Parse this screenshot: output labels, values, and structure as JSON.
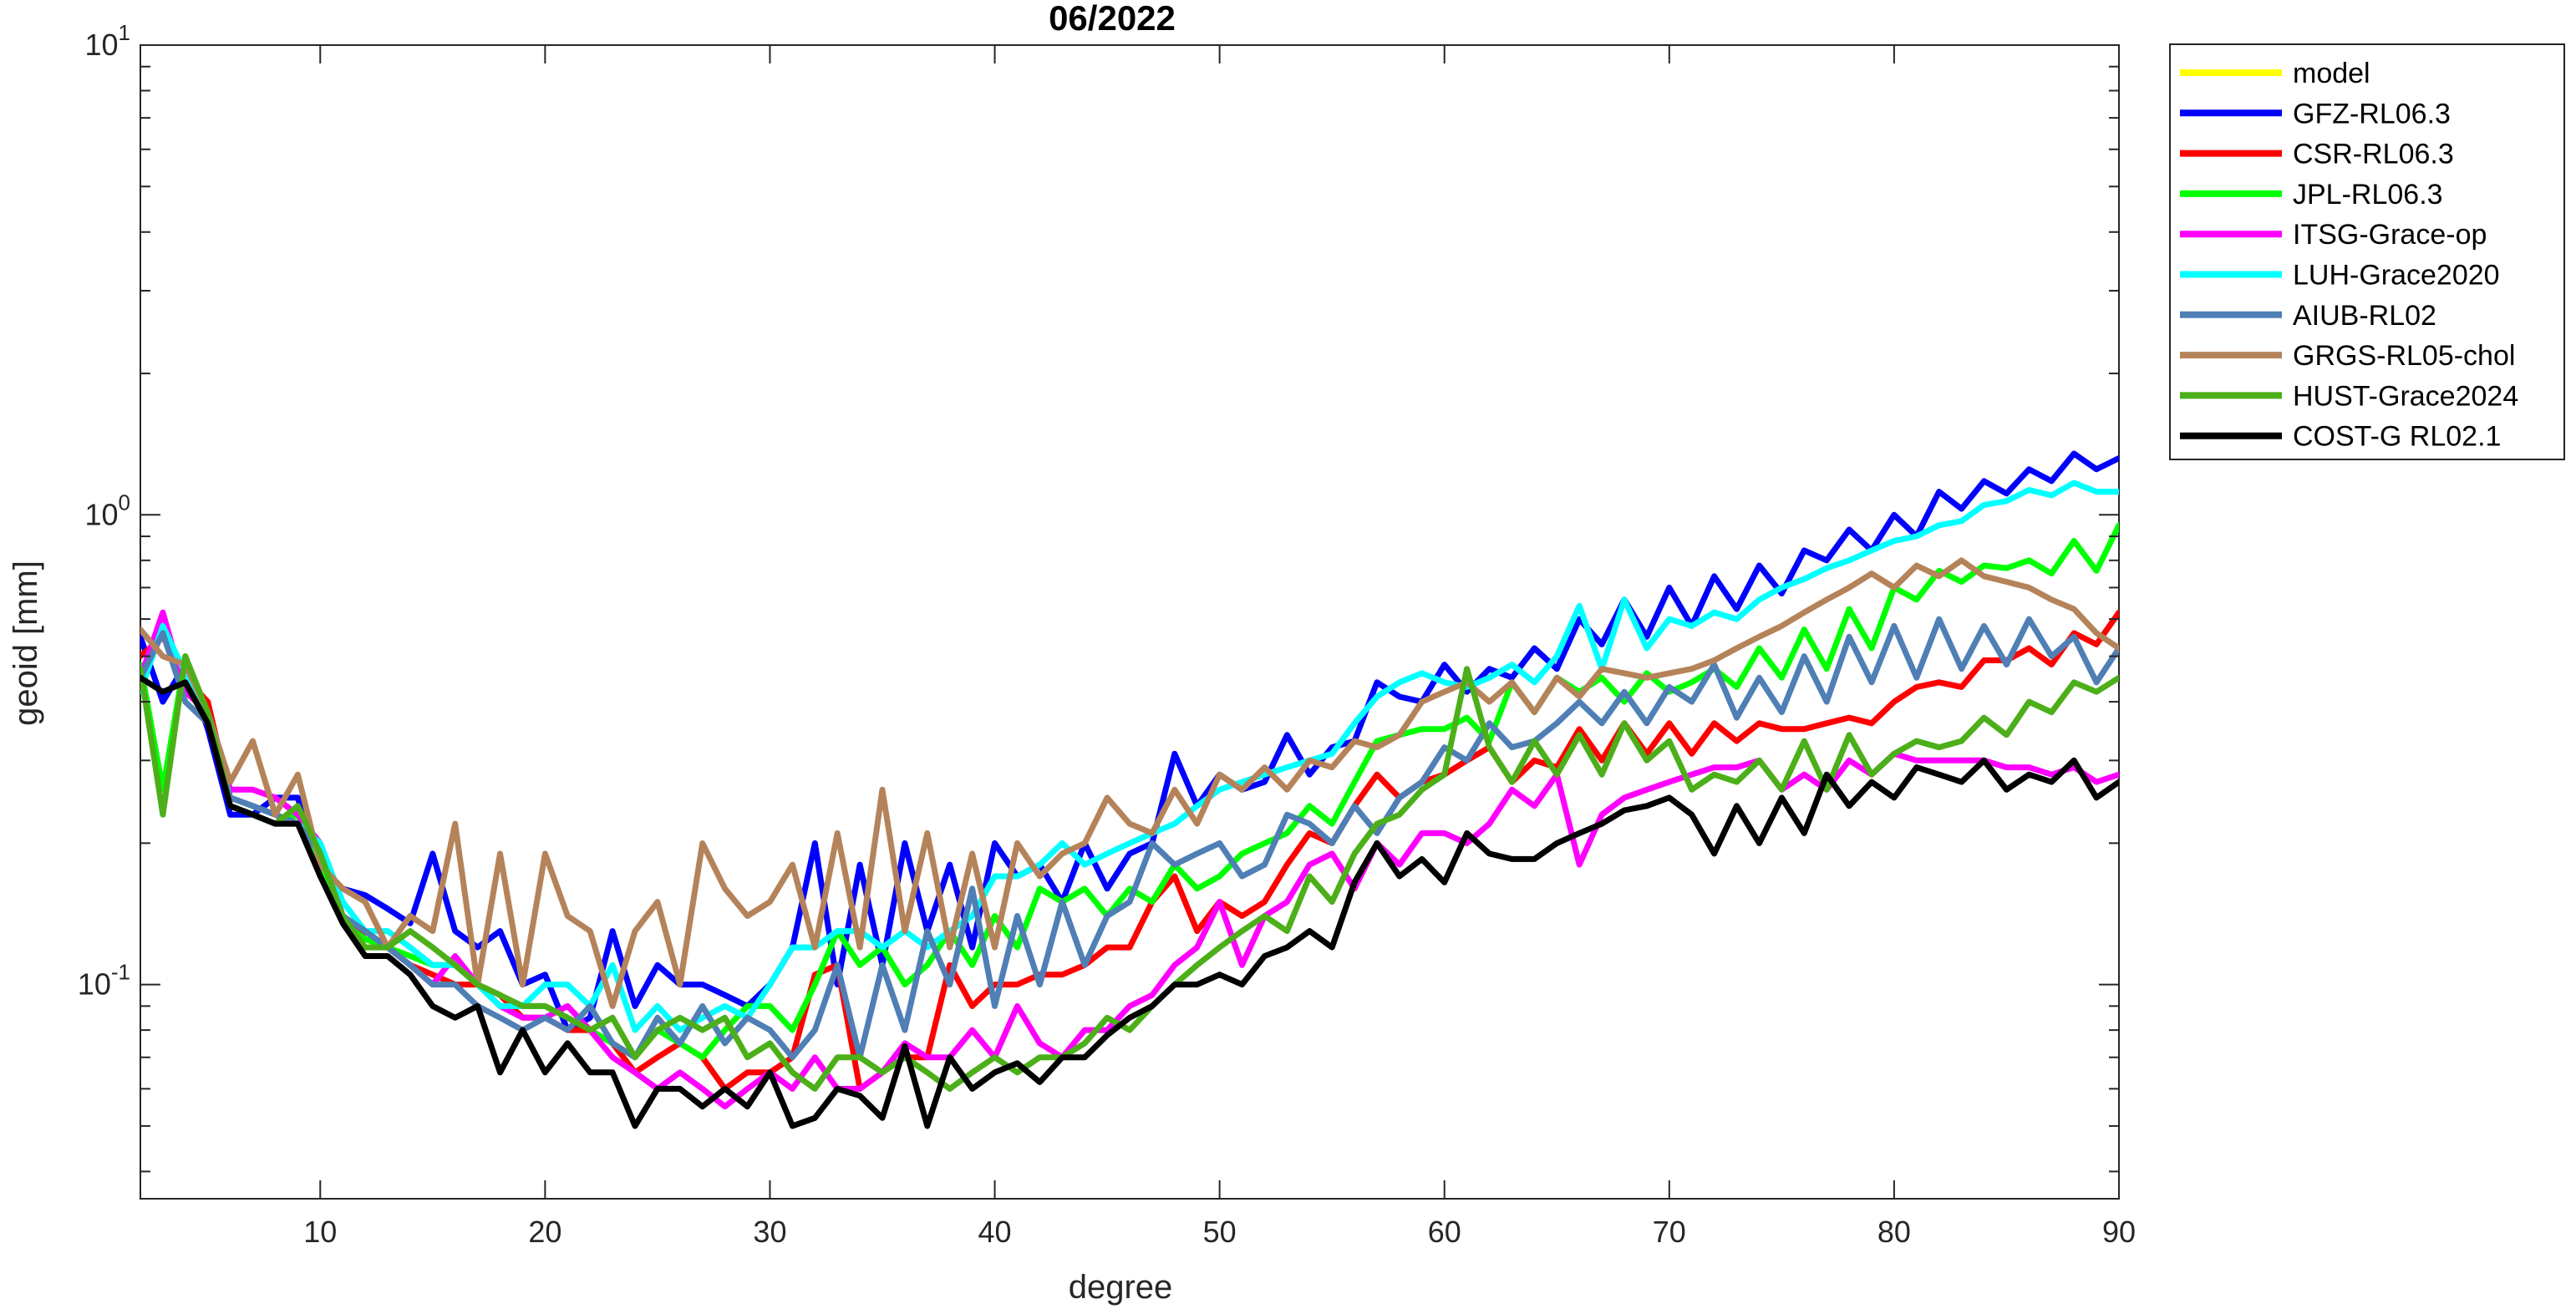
{
  "chart_data": {
    "type": "line",
    "title": "06/2022",
    "xlabel": "degree",
    "ylabel": "geoid [mm]",
    "xlim": [
      2,
      90
    ],
    "ylim": [
      0.035,
      10
    ],
    "yscale": "log",
    "xticks": [
      10,
      20,
      30,
      40,
      50,
      60,
      70,
      80,
      90
    ],
    "yticks": [
      {
        "value": 0.1,
        "base": "10",
        "exp": "-1"
      },
      {
        "value": 1,
        "base": "10",
        "exp": "0"
      },
      {
        "value": 10,
        "base": "10",
        "exp": "1"
      }
    ],
    "grid": false,
    "legend_position": "outside-top-right",
    "x_start": 2,
    "series": [
      {
        "name": "model",
        "color": "#FFFF00",
        "values": []
      },
      {
        "name": "GFZ-RL06.3",
        "color": "#0000FF",
        "values": [
          0.55,
          0.4,
          0.48,
          0.35,
          0.23,
          0.23,
          0.25,
          0.25,
          0.17,
          0.16,
          0.155,
          0.145,
          0.135,
          0.19,
          0.13,
          0.12,
          0.13,
          0.1,
          0.105,
          0.08,
          0.085,
          0.13,
          0.09,
          0.11,
          0.1,
          0.1,
          0.095,
          0.09,
          0.1,
          0.12,
          0.2,
          0.1,
          0.18,
          0.11,
          0.2,
          0.13,
          0.18,
          0.12,
          0.2,
          0.17,
          0.18,
          0.15,
          0.2,
          0.16,
          0.19,
          0.2,
          0.31,
          0.24,
          0.28,
          0.26,
          0.27,
          0.34,
          0.28,
          0.32,
          0.33,
          0.44,
          0.41,
          0.4,
          0.48,
          0.42,
          0.47,
          0.45,
          0.52,
          0.47,
          0.6,
          0.53,
          0.66,
          0.55,
          0.7,
          0.58,
          0.74,
          0.63,
          0.78,
          0.68,
          0.84,
          0.8,
          0.93,
          0.84,
          1.0,
          0.9,
          1.12,
          1.03,
          1.18,
          1.11,
          1.25,
          1.18,
          1.35,
          1.25,
          1.32,
          1.23
        ]
      },
      {
        "name": "CSR-RL06.3",
        "color": "#FF0000",
        "values": [
          0.5,
          0.55,
          0.45,
          0.4,
          0.25,
          0.24,
          0.23,
          0.22,
          0.19,
          0.14,
          0.125,
          0.12,
          0.11,
          0.105,
          0.1,
          0.1,
          0.095,
          0.085,
          0.085,
          0.08,
          0.08,
          0.075,
          0.065,
          0.07,
          0.075,
          0.07,
          0.06,
          0.065,
          0.065,
          0.07,
          0.105,
          0.11,
          0.06,
          0.065,
          0.07,
          0.07,
          0.11,
          0.09,
          0.1,
          0.1,
          0.105,
          0.105,
          0.11,
          0.12,
          0.12,
          0.15,
          0.17,
          0.13,
          0.15,
          0.14,
          0.15,
          0.18,
          0.21,
          0.2,
          0.24,
          0.28,
          0.25,
          0.27,
          0.28,
          0.3,
          0.32,
          0.27,
          0.3,
          0.29,
          0.35,
          0.3,
          0.36,
          0.31,
          0.36,
          0.31,
          0.36,
          0.33,
          0.36,
          0.35,
          0.35,
          0.36,
          0.37,
          0.36,
          0.4,
          0.43,
          0.44,
          0.43,
          0.49,
          0.49,
          0.52,
          0.48,
          0.56,
          0.53,
          0.62,
          0.52,
          0.67
        ]
      },
      {
        "name": "JPL-RL06.3",
        "color": "#00FF00",
        "values": [
          0.48,
          0.26,
          0.5,
          0.37,
          0.24,
          0.23,
          0.22,
          0.23,
          0.18,
          0.135,
          0.125,
          0.12,
          0.115,
          0.11,
          0.11,
          0.1,
          0.09,
          0.09,
          0.09,
          0.085,
          0.08,
          0.075,
          0.07,
          0.08,
          0.075,
          0.07,
          0.08,
          0.09,
          0.09,
          0.08,
          0.1,
          0.13,
          0.11,
          0.12,
          0.1,
          0.11,
          0.13,
          0.11,
          0.14,
          0.12,
          0.16,
          0.15,
          0.16,
          0.14,
          0.16,
          0.15,
          0.18,
          0.16,
          0.17,
          0.19,
          0.2,
          0.21,
          0.24,
          0.22,
          0.27,
          0.33,
          0.34,
          0.35,
          0.35,
          0.37,
          0.33,
          0.44,
          0.38,
          0.45,
          0.42,
          0.45,
          0.4,
          0.46,
          0.42,
          0.44,
          0.47,
          0.43,
          0.52,
          0.45,
          0.57,
          0.47,
          0.63,
          0.52,
          0.7,
          0.66,
          0.76,
          0.72,
          0.78,
          0.77,
          0.8,
          0.75,
          0.88,
          0.76,
          0.95,
          0.76
        ]
      },
      {
        "name": "ITSG-Grace-op",
        "color": "#FF00FF",
        "values": [
          0.45,
          0.62,
          0.42,
          0.38,
          0.26,
          0.26,
          0.25,
          0.23,
          0.2,
          0.14,
          0.13,
          0.12,
          0.11,
          0.1,
          0.115,
          0.1,
          0.09,
          0.085,
          0.085,
          0.09,
          0.08,
          0.07,
          0.065,
          0.06,
          0.065,
          0.06,
          0.055,
          0.06,
          0.065,
          0.06,
          0.07,
          0.06,
          0.06,
          0.065,
          0.075,
          0.07,
          0.07,
          0.08,
          0.07,
          0.09,
          0.075,
          0.07,
          0.08,
          0.08,
          0.09,
          0.095,
          0.11,
          0.12,
          0.15,
          0.11,
          0.14,
          0.15,
          0.18,
          0.19,
          0.16,
          0.2,
          0.18,
          0.21,
          0.21,
          0.2,
          0.22,
          0.26,
          0.24,
          0.28,
          0.18,
          0.23,
          0.25,
          0.26,
          0.27,
          0.28,
          0.29,
          0.29,
          0.3,
          0.26,
          0.28,
          0.26,
          0.3,
          0.28,
          0.31,
          0.3,
          0.3,
          0.3,
          0.3,
          0.29,
          0.29,
          0.28,
          0.29,
          0.27,
          0.28,
          0.26,
          0.26
        ]
      },
      {
        "name": "LUH-Grace2020",
        "color": "#00FFFF",
        "values": [
          0.42,
          0.58,
          0.46,
          0.37,
          0.25,
          0.24,
          0.23,
          0.22,
          0.2,
          0.15,
          0.13,
          0.13,
          0.12,
          0.11,
          0.11,
          0.1,
          0.09,
          0.09,
          0.1,
          0.1,
          0.09,
          0.11,
          0.08,
          0.09,
          0.08,
          0.085,
          0.09,
          0.085,
          0.1,
          0.12,
          0.12,
          0.13,
          0.13,
          0.12,
          0.13,
          0.12,
          0.13,
          0.14,
          0.17,
          0.17,
          0.18,
          0.2,
          0.18,
          0.19,
          0.2,
          0.21,
          0.22,
          0.24,
          0.26,
          0.27,
          0.28,
          0.29,
          0.3,
          0.31,
          0.36,
          0.41,
          0.44,
          0.46,
          0.44,
          0.43,
          0.45,
          0.48,
          0.44,
          0.5,
          0.64,
          0.47,
          0.66,
          0.52,
          0.6,
          0.58,
          0.62,
          0.6,
          0.66,
          0.7,
          0.73,
          0.77,
          0.8,
          0.84,
          0.88,
          0.9,
          0.95,
          0.97,
          1.05,
          1.07,
          1.13,
          1.1,
          1.17,
          1.12,
          1.12,
          1.05
        ]
      },
      {
        "name": "AIUB-RL02",
        "color": "#4F7FB5",
        "values": [
          0.45,
          0.56,
          0.4,
          0.36,
          0.25,
          0.24,
          0.23,
          0.22,
          0.19,
          0.14,
          0.13,
          0.12,
          0.11,
          0.1,
          0.1,
          0.09,
          0.085,
          0.08,
          0.085,
          0.08,
          0.09,
          0.075,
          0.07,
          0.085,
          0.075,
          0.09,
          0.075,
          0.085,
          0.08,
          0.07,
          0.08,
          0.11,
          0.07,
          0.11,
          0.08,
          0.13,
          0.1,
          0.16,
          0.09,
          0.14,
          0.1,
          0.15,
          0.11,
          0.14,
          0.15,
          0.2,
          0.18,
          0.19,
          0.2,
          0.17,
          0.18,
          0.23,
          0.22,
          0.2,
          0.24,
          0.21,
          0.25,
          0.27,
          0.32,
          0.3,
          0.36,
          0.32,
          0.33,
          0.36,
          0.4,
          0.36,
          0.42,
          0.36,
          0.43,
          0.4,
          0.48,
          0.37,
          0.45,
          0.38,
          0.5,
          0.4,
          0.55,
          0.44,
          0.58,
          0.45,
          0.6,
          0.47,
          0.58,
          0.48,
          0.6,
          0.5,
          0.55,
          0.44,
          0.52,
          0.46,
          0.49
        ]
      },
      {
        "name": "GRGS-RL05-chol",
        "color": "#B5835A",
        "values": [
          0.57,
          0.5,
          0.48,
          0.38,
          0.27,
          0.33,
          0.23,
          0.28,
          0.18,
          0.16,
          0.15,
          0.12,
          0.14,
          0.13,
          0.22,
          0.1,
          0.19,
          0.1,
          0.19,
          0.14,
          0.13,
          0.09,
          0.13,
          0.15,
          0.1,
          0.2,
          0.16,
          0.14,
          0.15,
          0.18,
          0.12,
          0.21,
          0.12,
          0.26,
          0.13,
          0.21,
          0.12,
          0.19,
          0.12,
          0.2,
          0.17,
          0.19,
          0.2,
          0.25,
          0.22,
          0.21,
          0.26,
          0.22,
          0.28,
          0.26,
          0.29,
          0.26,
          0.3,
          0.29,
          0.33,
          0.32,
          0.34,
          0.4,
          0.42,
          0.44,
          0.4,
          0.44,
          0.38,
          0.45,
          0.41,
          0.47,
          0.46,
          0.45,
          0.46,
          0.47,
          0.49,
          0.52,
          0.55,
          0.58,
          0.62,
          0.66,
          0.7,
          0.75,
          0.7,
          0.78,
          0.74,
          0.8,
          0.74,
          0.72,
          0.7,
          0.66,
          0.63,
          0.56,
          0.52,
          0.44,
          0.46
        ]
      },
      {
        "name": "HUST-Grace2024",
        "color": "#4CAF1A",
        "values": [
          0.47,
          0.23,
          0.5,
          0.38,
          0.24,
          0.23,
          0.22,
          0.24,
          0.19,
          0.14,
          0.12,
          0.12,
          0.13,
          0.12,
          0.11,
          0.1,
          0.095,
          0.09,
          0.09,
          0.085,
          0.08,
          0.085,
          0.07,
          0.08,
          0.085,
          0.08,
          0.085,
          0.07,
          0.075,
          0.065,
          0.06,
          0.07,
          0.07,
          0.065,
          0.07,
          0.065,
          0.06,
          0.065,
          0.07,
          0.065,
          0.07,
          0.07,
          0.075,
          0.085,
          0.08,
          0.09,
          0.1,
          0.11,
          0.12,
          0.13,
          0.14,
          0.13,
          0.17,
          0.15,
          0.19,
          0.22,
          0.23,
          0.26,
          0.28,
          0.47,
          0.32,
          0.27,
          0.33,
          0.28,
          0.34,
          0.28,
          0.36,
          0.3,
          0.33,
          0.26,
          0.28,
          0.27,
          0.3,
          0.26,
          0.33,
          0.26,
          0.34,
          0.28,
          0.31,
          0.33,
          0.32,
          0.33,
          0.37,
          0.34,
          0.4,
          0.38,
          0.44,
          0.42,
          0.45,
          0.46,
          0.47
        ]
      },
      {
        "name": "COST-G RL02.1",
        "color": "#000000",
        "values": [
          0.45,
          0.42,
          0.44,
          0.36,
          0.24,
          0.23,
          0.22,
          0.22,
          0.17,
          0.135,
          0.115,
          0.115,
          0.105,
          0.09,
          0.085,
          0.09,
          0.065,
          0.08,
          0.065,
          0.075,
          0.065,
          0.065,
          0.05,
          0.06,
          0.06,
          0.055,
          0.06,
          0.055,
          0.065,
          0.05,
          0.052,
          0.06,
          0.058,
          0.052,
          0.074,
          0.05,
          0.07,
          0.06,
          0.065,
          0.068,
          0.062,
          0.07,
          0.07,
          0.078,
          0.085,
          0.09,
          0.1,
          0.1,
          0.105,
          0.1,
          0.115,
          0.12,
          0.13,
          0.12,
          0.165,
          0.2,
          0.17,
          0.185,
          0.165,
          0.21,
          0.19,
          0.185,
          0.185,
          0.2,
          0.21,
          0.22,
          0.235,
          0.24,
          0.25,
          0.23,
          0.19,
          0.24,
          0.2,
          0.25,
          0.21,
          0.28,
          0.24,
          0.27,
          0.25,
          0.29,
          0.28,
          0.27,
          0.3,
          0.26,
          0.28,
          0.27,
          0.3,
          0.25,
          0.27,
          0.24
        ]
      }
    ]
  }
}
